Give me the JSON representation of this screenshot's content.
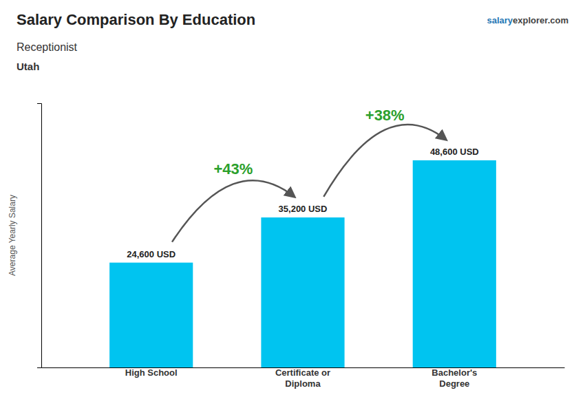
{
  "chart_data": {
    "type": "bar",
    "title": "Salary Comparison By Education",
    "subtitle": "Receptionist",
    "ylabel": "Average Yearly Salary",
    "annotations": {
      "location": "Utah",
      "website": [
        "salary",
        "explorer.com"
      ],
      "changes": [
        "+43%",
        "+38%"
      ]
    },
    "categories": [
      "High School",
      "Certificate or\nDiploma",
      "Bachelor's\nDegree"
    ],
    "values": [
      24600,
      35200,
      48600
    ],
    "value_labels": [
      "24,600 USD",
      "35,200 USD",
      "48,600 USD"
    ],
    "data_labels": true,
    "color": "#00C4F0",
    "ylim": [
      0,
      62000
    ],
    "grid": false,
    "tick_labels": "x"
  }
}
